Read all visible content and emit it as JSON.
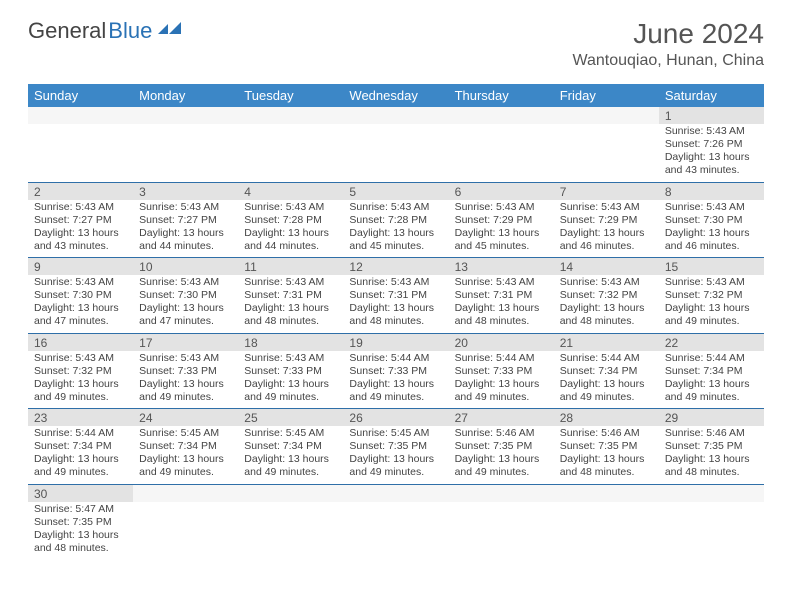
{
  "brand": {
    "text1": "General",
    "text2": "Blue"
  },
  "title": "June 2024",
  "location": "Wantouqiao, Hunan, China",
  "colors": {
    "header_bg": "#3c87c7",
    "header_text": "#ffffff",
    "date_bg": "#e3e3e3",
    "border": "#2f6fa8",
    "body_text": "#444444",
    "title_text": "#555555"
  },
  "day_headers": [
    "Sunday",
    "Monday",
    "Tuesday",
    "Wednesday",
    "Thursday",
    "Friday",
    "Saturday"
  ],
  "weeks": [
    [
      null,
      null,
      null,
      null,
      null,
      null,
      {
        "n": "1",
        "rise": "5:43 AM",
        "set": "7:26 PM",
        "dh": "13",
        "dm": "43"
      }
    ],
    [
      {
        "n": "2",
        "rise": "5:43 AM",
        "set": "7:27 PM",
        "dh": "13",
        "dm": "43"
      },
      {
        "n": "3",
        "rise": "5:43 AM",
        "set": "7:27 PM",
        "dh": "13",
        "dm": "44"
      },
      {
        "n": "4",
        "rise": "5:43 AM",
        "set": "7:28 PM",
        "dh": "13",
        "dm": "44"
      },
      {
        "n": "5",
        "rise": "5:43 AM",
        "set": "7:28 PM",
        "dh": "13",
        "dm": "45"
      },
      {
        "n": "6",
        "rise": "5:43 AM",
        "set": "7:29 PM",
        "dh": "13",
        "dm": "45"
      },
      {
        "n": "7",
        "rise": "5:43 AM",
        "set": "7:29 PM",
        "dh": "13",
        "dm": "46"
      },
      {
        "n": "8",
        "rise": "5:43 AM",
        "set": "7:30 PM",
        "dh": "13",
        "dm": "46"
      }
    ],
    [
      {
        "n": "9",
        "rise": "5:43 AM",
        "set": "7:30 PM",
        "dh": "13",
        "dm": "47"
      },
      {
        "n": "10",
        "rise": "5:43 AM",
        "set": "7:30 PM",
        "dh": "13",
        "dm": "47"
      },
      {
        "n": "11",
        "rise": "5:43 AM",
        "set": "7:31 PM",
        "dh": "13",
        "dm": "48"
      },
      {
        "n": "12",
        "rise": "5:43 AM",
        "set": "7:31 PM",
        "dh": "13",
        "dm": "48"
      },
      {
        "n": "13",
        "rise": "5:43 AM",
        "set": "7:31 PM",
        "dh": "13",
        "dm": "48"
      },
      {
        "n": "14",
        "rise": "5:43 AM",
        "set": "7:32 PM",
        "dh": "13",
        "dm": "48"
      },
      {
        "n": "15",
        "rise": "5:43 AM",
        "set": "7:32 PM",
        "dh": "13",
        "dm": "49"
      }
    ],
    [
      {
        "n": "16",
        "rise": "5:43 AM",
        "set": "7:32 PM",
        "dh": "13",
        "dm": "49"
      },
      {
        "n": "17",
        "rise": "5:43 AM",
        "set": "7:33 PM",
        "dh": "13",
        "dm": "49"
      },
      {
        "n": "18",
        "rise": "5:43 AM",
        "set": "7:33 PM",
        "dh": "13",
        "dm": "49"
      },
      {
        "n": "19",
        "rise": "5:44 AM",
        "set": "7:33 PM",
        "dh": "13",
        "dm": "49"
      },
      {
        "n": "20",
        "rise": "5:44 AM",
        "set": "7:33 PM",
        "dh": "13",
        "dm": "49"
      },
      {
        "n": "21",
        "rise": "5:44 AM",
        "set": "7:34 PM",
        "dh": "13",
        "dm": "49"
      },
      {
        "n": "22",
        "rise": "5:44 AM",
        "set": "7:34 PM",
        "dh": "13",
        "dm": "49"
      }
    ],
    [
      {
        "n": "23",
        "rise": "5:44 AM",
        "set": "7:34 PM",
        "dh": "13",
        "dm": "49"
      },
      {
        "n": "24",
        "rise": "5:45 AM",
        "set": "7:34 PM",
        "dh": "13",
        "dm": "49"
      },
      {
        "n": "25",
        "rise": "5:45 AM",
        "set": "7:34 PM",
        "dh": "13",
        "dm": "49"
      },
      {
        "n": "26",
        "rise": "5:45 AM",
        "set": "7:35 PM",
        "dh": "13",
        "dm": "49"
      },
      {
        "n": "27",
        "rise": "5:46 AM",
        "set": "7:35 PM",
        "dh": "13",
        "dm": "49"
      },
      {
        "n": "28",
        "rise": "5:46 AM",
        "set": "7:35 PM",
        "dh": "13",
        "dm": "48"
      },
      {
        "n": "29",
        "rise": "5:46 AM",
        "set": "7:35 PM",
        "dh": "13",
        "dm": "48"
      }
    ],
    [
      {
        "n": "30",
        "rise": "5:47 AM",
        "set": "7:35 PM",
        "dh": "13",
        "dm": "48"
      },
      null,
      null,
      null,
      null,
      null,
      null
    ]
  ],
  "labels": {
    "sunrise": "Sunrise:",
    "sunset": "Sunset:",
    "daylight_p1": "Daylight:",
    "daylight_hours": "hours",
    "daylight_and": "and",
    "daylight_minutes": "minutes."
  }
}
